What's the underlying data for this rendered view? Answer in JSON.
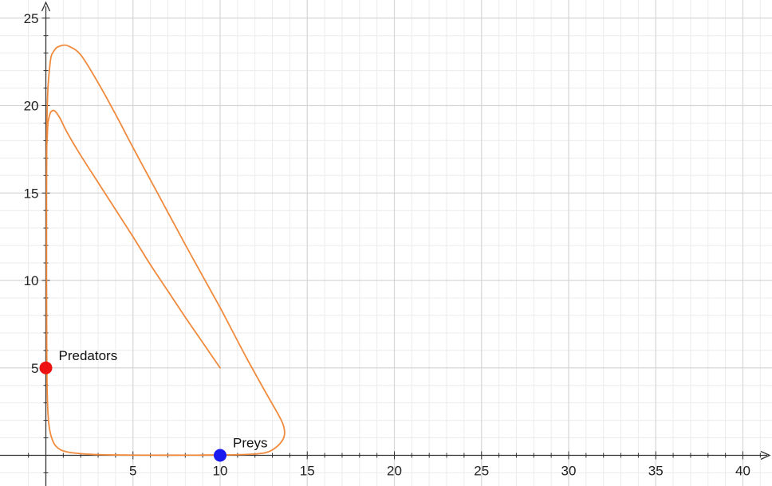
{
  "colors": {
    "curve": "#f08a3c",
    "predators_point": "#ee1111",
    "preys_point": "#1a1aee",
    "major_grid": "#d6d6d6",
    "minor_grid": "#ececec",
    "axis": "#333333"
  },
  "chart_data": {
    "type": "line",
    "title": "",
    "xlabel": "",
    "ylabel": "",
    "xlim": [
      -1.2,
      42
    ],
    "ylim": [
      -1.8,
      25.8
    ],
    "grid": true,
    "x_ticks": [
      5,
      10,
      15,
      20,
      25,
      30,
      35,
      40
    ],
    "x_tick_labels": [
      "5",
      "10",
      "15",
      "20",
      "25",
      "30",
      "35",
      "40"
    ],
    "y_ticks": [
      5,
      10,
      15,
      20,
      25
    ],
    "y_tick_labels": [
      "5",
      "10",
      "15",
      "20",
      "25"
    ],
    "series": [
      {
        "color": "#f08a3c",
        "x": [
          10,
          9.0,
          8.0,
          7.0,
          6.0,
          5.0,
          4.0,
          3.0,
          2.0,
          1.2,
          0.8,
          0.5,
          0.3,
          0.2,
          0.12,
          0.08,
          0.05,
          0.04,
          0.04,
          0.05,
          0.08,
          0.15,
          0.3,
          0.6,
          1.2,
          2.5,
          4.0,
          6.0,
          8.0,
          10.0,
          11.5,
          12.6,
          13.2,
          13.6,
          13.7,
          13.6,
          13.3,
          12.5,
          11.5,
          10.5,
          10.0,
          9.0,
          8.0,
          7.0,
          6.0,
          5.0,
          4.0,
          3.0,
          2.0,
          1.3,
          1.0,
          0.8,
          0.6,
          0.45,
          0.3,
          0.2,
          0.12,
          0.07,
          0.05,
          0.04
        ],
        "y": [
          5,
          6.45,
          7.9,
          9.4,
          10.9,
          12.5,
          14.05,
          15.6,
          17.15,
          18.5,
          19.3,
          19.7,
          19.65,
          19.4,
          19.0,
          18.2,
          17.5,
          15.0,
          10.0,
          6.0,
          3.5,
          2.0,
          1.1,
          0.5,
          0.2,
          0.06,
          0.02,
          0.01,
          0.01,
          0.02,
          0.05,
          0.15,
          0.45,
          0.9,
          1.3,
          1.8,
          2.4,
          3.8,
          5.6,
          7.5,
          8.45,
          10.25,
          12.05,
          13.9,
          15.75,
          17.6,
          19.5,
          21.3,
          22.9,
          23.4,
          23.45,
          23.4,
          23.3,
          23.1,
          22.8,
          22.0,
          21.0,
          19.5,
          18.0,
          17.0
        ]
      }
    ],
    "points": [
      {
        "label": "Predators",
        "x": 0,
        "y": 5,
        "color": "#ee1111"
      },
      {
        "label": "Preys",
        "x": 10,
        "y": 0,
        "color": "#1a1aee"
      }
    ]
  }
}
